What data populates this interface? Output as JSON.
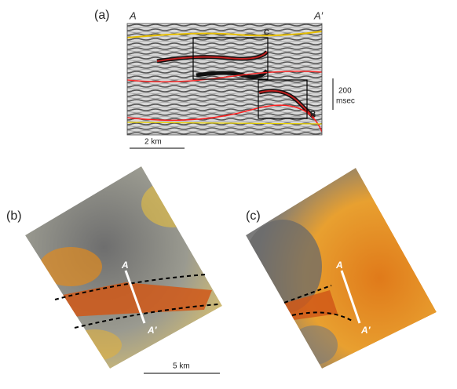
{
  "panels": [
    {
      "label": "(a)",
      "endpoints": [
        "A",
        "A′"
      ],
      "boxes": [
        "C",
        "B"
      ],
      "time_scale": {
        "value": "200",
        "unit": "msec"
      },
      "distance_scale": "2 km"
    },
    {
      "label": "(b)",
      "endpoints": [
        "A",
        "A′"
      ]
    },
    {
      "label": "(c)",
      "endpoints": [
        "A",
        "A′"
      ]
    }
  ],
  "distance_scale": "5 km"
}
